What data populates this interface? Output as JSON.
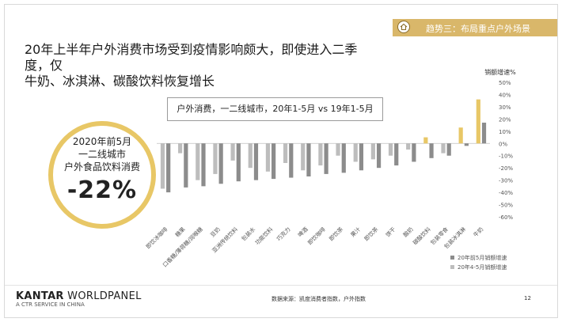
{
  "badge": {
    "icon": "house-icon",
    "text": "趋势三：布局重点户外场景"
  },
  "headline": "20年上半年户外消费市场受到疫情影响颇大，即使进入二季度，仅\n牛奶、冰淇淋、碳酸饮料恢复增长",
  "subtitle": "户外消费，一二线城市，20年1-5月 vs 19年1-5月",
  "highlight": {
    "line1": "2020年前5月",
    "line2": "一二线城市",
    "line3": "户外食品饮料消费",
    "value": "-22%"
  },
  "chart_data": {
    "type": "bar",
    "ylabel": "销额增速%",
    "ylim": [
      -60,
      50
    ],
    "yticks": [
      "50%",
      "40%",
      "30%",
      "20%",
      "10%",
      "0%",
      "-10%",
      "-20%",
      "-30%",
      "-40%",
      "-50%",
      "-60%"
    ],
    "categories": [
      "即饮冰咖啡",
      "糖果",
      "口香糖/薄荷糖/润喉糖",
      "豆奶",
      "亚洲传统饮料",
      "包装水",
      "功能饮料",
      "巧克力",
      "啤酒",
      "即饮咖啡",
      "即饮茶",
      "果汁",
      "即饮茶",
      "饼干",
      "酸奶",
      "碳酸饮料",
      "包装零食",
      "包装冰淇淋",
      "牛奶"
    ],
    "series": [
      {
        "name": "20年前5月销额增速",
        "color": "#8c8c8c",
        "values": [
          -40,
          -36,
          -35,
          -33,
          -31,
          -30,
          -29,
          -28,
          -27,
          -25,
          -24,
          -22,
          -20,
          -18,
          -15,
          -12,
          -10,
          -2,
          17
        ]
      },
      {
        "name": "20年4-5月销额增速",
        "color": "#bdbdbd",
        "values": [
          -37,
          -8,
          -30,
          -25,
          -14,
          -20,
          -23,
          -16,
          -22,
          -18,
          -10,
          -15,
          -13,
          -10,
          -5,
          5,
          -8,
          13,
          36
        ]
      }
    ],
    "highlight_color": "#e8c766",
    "highlight_categories": [
      "碳酸饮料",
      "包装冰淇淋",
      "牛奶"
    ]
  },
  "footer": {
    "brand_bold": "KANTAR",
    "brand_rest": " WORLDPANEL",
    "tagline": "A CTR SERVICE IN CHINA",
    "source": "数据来源：凯度消费者指数，户外指数",
    "page": "12"
  }
}
